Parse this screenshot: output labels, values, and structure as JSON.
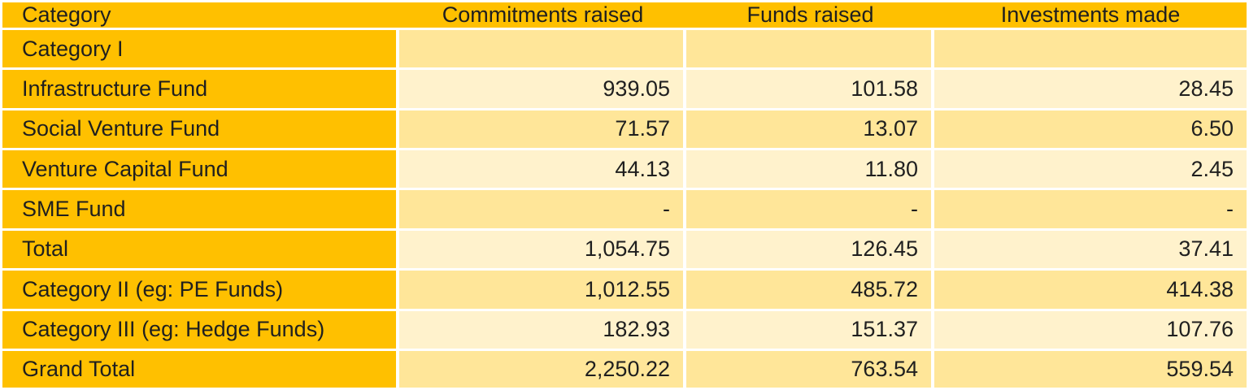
{
  "chart_data": {
    "type": "table",
    "columns": [
      "Category",
      "Commitments raised",
      "Funds raised",
      "Investments made"
    ],
    "rows": [
      [
        "Category I",
        "",
        "",
        ""
      ],
      [
        "Infrastructure Fund",
        "939.05",
        "101.58",
        "28.45"
      ],
      [
        "Social Venture Fund",
        "71.57",
        "13.07",
        "6.50"
      ],
      [
        "Venture Capital Fund",
        "44.13",
        "11.80",
        "2.45"
      ],
      [
        "SME Fund",
        "-",
        "-",
        "-"
      ],
      [
        "Total",
        "1,054.75",
        "126.45",
        "37.41"
      ],
      [
        "Category II (eg: PE Funds)",
        "1,012.55",
        "485.72",
        "414.38"
      ],
      [
        "Category III (eg: Hedge Funds)",
        "182.93",
        "151.37",
        "107.76"
      ],
      [
        "Grand Total",
        "2,250.22",
        "763.54",
        "559.54"
      ]
    ]
  },
  "colors": {
    "header_bg": "#FFC000",
    "category_col_bg": "#FFC000",
    "band_dark": "#FFE699",
    "band_light": "#FFF2CC",
    "border": "#FFFFFF",
    "text": "#1F1F1F"
  }
}
